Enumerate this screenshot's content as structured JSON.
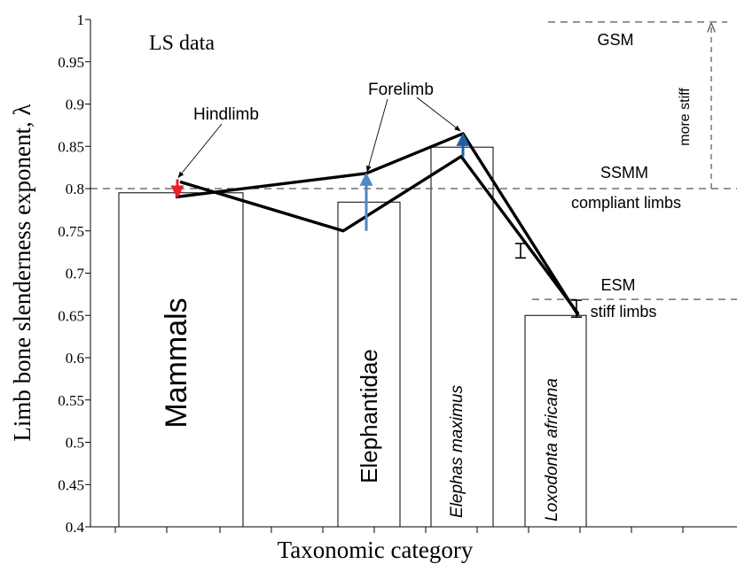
{
  "chart_data": {
    "type": "bar",
    "title": "LS data",
    "xlabel": "Taxonomic category",
    "ylabel": "Limb bone slenderness exponent, λ",
    "ylim": [
      0.4,
      1.0
    ],
    "yticks": [
      0.4,
      0.45,
      0.5,
      0.55,
      0.6,
      0.65,
      0.7,
      0.75,
      0.8,
      0.85,
      0.9,
      0.95,
      1
    ],
    "ytick_labels": [
      "0.4",
      "0.45",
      "0.5",
      "0.55",
      "0.6",
      "0.65",
      "0.7",
      "0.75",
      "0.8",
      "0.85",
      "0.9",
      "0.95",
      "1"
    ],
    "categories": [
      "Mammals",
      "Elephantidae",
      "Elephas maximus",
      "Loxodonta africana"
    ],
    "values": [
      0.795,
      0.784,
      0.849,
      0.65
    ],
    "series": [
      {
        "name": "Forelimb",
        "values": [
          0.79,
          0.818,
          0.865,
          0.65
        ]
      },
      {
        "name": "Hindlimb",
        "values": [
          0.808,
          0.75,
          0.838,
          0.652
        ]
      }
    ],
    "error_bars": [
      {
        "category": "Elephas maximus",
        "low": 0.718,
        "high": 0.735
      },
      {
        "category": "Loxodonta africana",
        "low": 0.648,
        "high": 0.668
      }
    ],
    "reference_lines": [
      {
        "label": "GSM",
        "y": 0.997
      },
      {
        "label": "SSMM",
        "y": 0.8,
        "sublabel": "compliant limbs"
      },
      {
        "label": "ESM",
        "y": 0.669,
        "sublabel": "stiff limbs"
      }
    ],
    "annotations": {
      "more_stiff": "more stiff",
      "hindlimb": "Hindlimb",
      "forelimb": "Forelimb"
    },
    "colors": {
      "bar_fill": "#ffffff",
      "bar_stroke": "#000000",
      "line": "#000000",
      "arrow_down": "#e8202a",
      "arrow_up": "#4f86c6",
      "arrow_up_dark": "#1f5fa8",
      "reference": "#555555"
    },
    "grid": false
  }
}
